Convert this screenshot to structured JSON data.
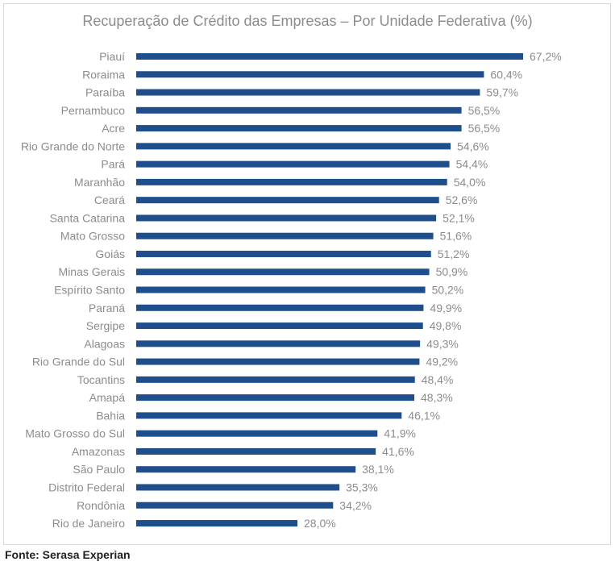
{
  "chart_data": {
    "type": "bar",
    "orientation": "horizontal",
    "title": "Recuperação de Crédito das Empresas – Por Unidade Federativa (%)",
    "categories": [
      "Piauí",
      "Roraima",
      "Paraíba",
      "Pernambuco",
      "Acre",
      "Rio Grande do Norte",
      "Pará",
      "Maranhão",
      "Ceará",
      "Santa Catarina",
      "Mato Grosso",
      "Goiás",
      "Minas Gerais",
      "Espírito Santo",
      "Paraná",
      "Sergipe",
      "Alagoas",
      "Rio Grande do Sul",
      "Tocantins",
      "Amapá",
      "Bahia",
      "Mato Grosso do Sul",
      "Amazonas",
      "São Paulo",
      "Distrito Federal",
      "Rondônia",
      "Rio de Janeiro"
    ],
    "values": [
      67.2,
      60.4,
      59.7,
      56.5,
      56.5,
      54.6,
      54.4,
      54.0,
      52.6,
      52.1,
      51.6,
      51.2,
      50.9,
      50.2,
      49.9,
      49.8,
      49.3,
      49.2,
      48.4,
      48.3,
      46.1,
      41.9,
      41.6,
      38.1,
      35.3,
      34.2,
      28.0
    ],
    "data_labels": [
      "67,2%",
      "60,4%",
      "59,7%",
      "56,5%",
      "56,5%",
      "54,6%",
      "54,4%",
      "54,0%",
      "52,6%",
      "52,1%",
      "51,6%",
      "51,2%",
      "50,9%",
      "50,2%",
      "49,9%",
      "49,8%",
      "49,3%",
      "49,2%",
      "48,4%",
      "48,3%",
      "46,1%",
      "41,9%",
      "41,6%",
      "38,1%",
      "35,3%",
      "34,2%",
      "28,0%"
    ],
    "xlim": [
      0,
      67.2
    ],
    "grid": false,
    "bar_color": "#1f4e8c",
    "label_color": "#8c8c8c"
  },
  "source": "Fonte: Serasa Experian"
}
